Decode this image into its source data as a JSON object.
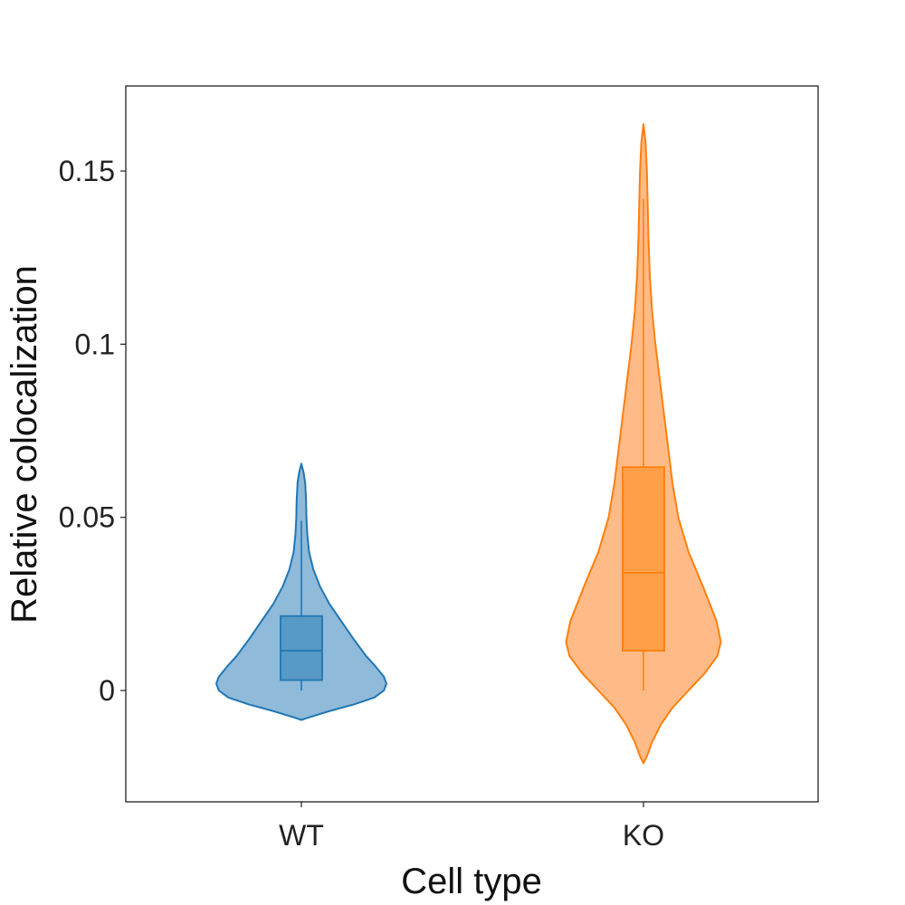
{
  "chart_data": {
    "type": "violin",
    "xlabel": "Cell type",
    "ylabel": "Relative colocalization",
    "categories": [
      "WT",
      "KO"
    ],
    "ylim": [
      -0.032,
      0.175
    ],
    "yticks": [
      {
        "value": 0,
        "label": "0"
      },
      {
        "value": 0.05,
        "label": "0.05"
      },
      {
        "value": 0.1,
        "label": "0.1"
      },
      {
        "value": 0.15,
        "label": "0.15"
      }
    ],
    "grid": false,
    "series": [
      {
        "category": "WT",
        "color": "#1f77b4",
        "fill": "#8fbad9",
        "box_fill": "#5799c7",
        "box": {
          "whisker_low": 0.0,
          "q1": 0.003,
          "median": 0.0115,
          "q3": 0.0215,
          "whisker_high": 0.049
        },
        "density": [
          {
            "y": -0.0085,
            "w": 0.0
          },
          {
            "y": -0.008,
            "w": 0.06
          },
          {
            "y": -0.006,
            "w": 0.32
          },
          {
            "y": -0.004,
            "w": 0.62
          },
          {
            "y": -0.002,
            "w": 0.86
          },
          {
            "y": 0.0,
            "w": 0.97
          },
          {
            "y": 0.002,
            "w": 1.0
          },
          {
            "y": 0.004,
            "w": 0.97
          },
          {
            "y": 0.007,
            "w": 0.87
          },
          {
            "y": 0.01,
            "w": 0.76
          },
          {
            "y": 0.015,
            "w": 0.61
          },
          {
            "y": 0.02,
            "w": 0.47
          },
          {
            "y": 0.025,
            "w": 0.33
          },
          {
            "y": 0.03,
            "w": 0.22
          },
          {
            "y": 0.035,
            "w": 0.14
          },
          {
            "y": 0.04,
            "w": 0.09
          },
          {
            "y": 0.045,
            "w": 0.07
          },
          {
            "y": 0.05,
            "w": 0.06
          },
          {
            "y": 0.055,
            "w": 0.055
          },
          {
            "y": 0.06,
            "w": 0.045
          },
          {
            "y": 0.063,
            "w": 0.025
          },
          {
            "y": 0.0655,
            "w": 0.0
          }
        ]
      },
      {
        "category": "KO",
        "color": "#ff7f0e",
        "fill": "#ffbb87",
        "box_fill": "#ff9f48",
        "box": {
          "whisker_low": 0.0,
          "q1": 0.0115,
          "median": 0.034,
          "q3": 0.0645,
          "whisker_high": 0.142
        },
        "density": [
          {
            "y": -0.021,
            "w": 0.0
          },
          {
            "y": -0.019,
            "w": 0.04
          },
          {
            "y": -0.015,
            "w": 0.1
          },
          {
            "y": -0.01,
            "w": 0.2
          },
          {
            "y": -0.005,
            "w": 0.34
          },
          {
            "y": 0.0,
            "w": 0.53
          },
          {
            "y": 0.005,
            "w": 0.72
          },
          {
            "y": 0.01,
            "w": 0.87
          },
          {
            "y": 0.014,
            "w": 0.91
          },
          {
            "y": 0.02,
            "w": 0.86
          },
          {
            "y": 0.03,
            "w": 0.7
          },
          {
            "y": 0.04,
            "w": 0.53
          },
          {
            "y": 0.05,
            "w": 0.41
          },
          {
            "y": 0.06,
            "w": 0.34
          },
          {
            "y": 0.07,
            "w": 0.29
          },
          {
            "y": 0.08,
            "w": 0.24
          },
          {
            "y": 0.09,
            "w": 0.19
          },
          {
            "y": 0.1,
            "w": 0.14
          },
          {
            "y": 0.11,
            "w": 0.1
          },
          {
            "y": 0.12,
            "w": 0.075
          },
          {
            "y": 0.13,
            "w": 0.06
          },
          {
            "y": 0.14,
            "w": 0.05
          },
          {
            "y": 0.15,
            "w": 0.04
          },
          {
            "y": 0.158,
            "w": 0.025
          },
          {
            "y": 0.1635,
            "w": 0.0
          }
        ]
      }
    ]
  }
}
